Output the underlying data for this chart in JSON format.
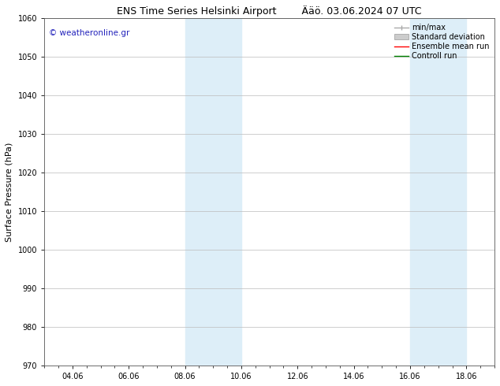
{
  "title": "ENS Time Series Helsinki Airport",
  "title_right": "Ääö. 03.06.2024 07 UTC",
  "ylabel": "Surface Pressure (hPa)",
  "ylim": [
    970,
    1060
  ],
  "yticks": [
    970,
    980,
    990,
    1000,
    1010,
    1020,
    1030,
    1040,
    1050,
    1060
  ],
  "xlim": [
    0,
    16
  ],
  "xtick_labels": [
    "04.06",
    "06.06",
    "08.06",
    "10.06",
    "12.06",
    "14.06",
    "16.06",
    "18.06"
  ],
  "xtick_positions": [
    1,
    3,
    5,
    7,
    9,
    11,
    13,
    15
  ],
  "shaded_bands": [
    {
      "x_start": 5,
      "x_end": 7
    },
    {
      "x_start": 13,
      "x_end": 15
    }
  ],
  "shaded_color": "#ddeef8",
  "grid_color": "#bbbbbb",
  "watermark_text": "© weatheronline.gr",
  "watermark_color": "#2222bb",
  "legend_entries": [
    {
      "label": "min/max",
      "color": "#aaaaaa"
    },
    {
      "label": "Standard deviation",
      "color": "#cccccc"
    },
    {
      "label": "Ensemble mean run",
      "color": "#ff0000"
    },
    {
      "label": "Controll run",
      "color": "#008000"
    }
  ],
  "bg_color": "#ffffff",
  "title_fontsize": 9,
  "axis_label_fontsize": 8,
  "tick_fontsize": 7,
  "watermark_fontsize": 7.5,
  "legend_fontsize": 7
}
